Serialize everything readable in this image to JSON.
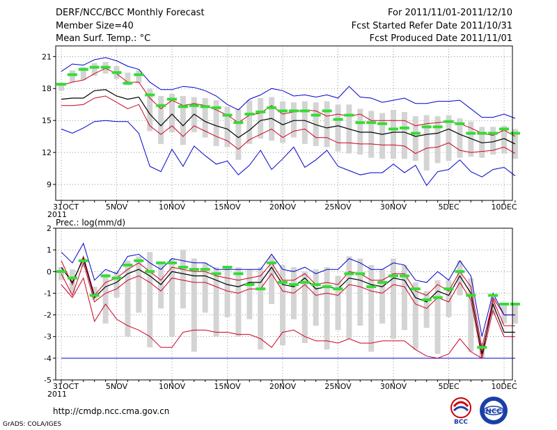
{
  "header": {
    "title": "DERF/NCC/BCC Monthly Forecast",
    "member_size": "Member Size=40",
    "variable": "Mean Surf. Temp.: °C",
    "period": "For 2011/11/01-2011/12/10",
    "started": "Fcst Started Refer Date 2011/10/31",
    "produced": "Fcst Produced Date 2011/11/01"
  },
  "footer": {
    "url": "http://cmdp.ncc.cma.gov.cn",
    "grads": "GrADS: COLA/IGES",
    "logo_bcc": "BCC",
    "logo_ncc": "NCC"
  },
  "colors": {
    "max_line": "#0000cc",
    "upper_line": "#cc0022",
    "mean_line": "#000000",
    "median_mark": "#33dd33",
    "box": "#d4d4d4"
  },
  "chart_data": [
    {
      "type": "line",
      "name": "temperature",
      "title": "Mean Surf. Temp.: °C",
      "ylabel": "°C",
      "ylim": [
        7.5,
        22
      ],
      "yticks": [
        9,
        12,
        15,
        18,
        21
      ],
      "x_tick_labels": [
        "31OCT",
        "5NOV",
        "10NOV",
        "15NOV",
        "20NOV",
        "25NOV",
        "30NOV",
        "5DEC",
        "10DEC"
      ],
      "x_year_label": "2011",
      "series": [
        {
          "name": "max",
          "values": [
            19.6,
            20.3,
            20.2,
            20.7,
            20.9,
            20.6,
            20.1,
            19.8,
            18.6,
            17.9,
            17.9,
            18.2,
            18.1,
            17.8,
            17.3,
            16.5,
            16.0,
            17.0,
            17.4,
            18.0,
            17.8,
            17.3,
            17.4,
            17.2,
            17.4,
            17.1,
            18.2,
            17.2,
            17.1,
            16.7,
            16.9,
            17.1,
            16.6,
            16.6,
            16.8,
            16.8,
            16.9,
            16.1,
            15.3,
            15.3,
            15.6,
            15.2
          ]
        },
        {
          "name": "upper",
          "values": [
            18.3,
            18.6,
            18.8,
            19.4,
            19.9,
            19.4,
            18.6,
            18.6,
            17.1,
            16.1,
            16.9,
            16.4,
            16.6,
            16.4,
            16.0,
            15.5,
            14.8,
            15.5,
            15.7,
            16.4,
            15.6,
            15.8,
            16.0,
            15.9,
            15.4,
            15.6,
            15.4,
            15.6,
            15.0,
            15.0,
            15.0,
            15.0,
            14.5,
            14.7,
            14.8,
            14.9,
            14.7,
            14.3,
            13.8,
            13.6,
            14.1,
            13.5
          ]
        },
        {
          "name": "mean",
          "values": [
            17.0,
            17.1,
            17.1,
            17.8,
            17.9,
            17.3,
            17.0,
            17.2,
            15.6,
            14.5,
            15.6,
            14.5,
            15.6,
            14.9,
            14.5,
            14.2,
            13.4,
            14.1,
            15.0,
            15.2,
            14.6,
            15.0,
            15.0,
            14.6,
            14.3,
            14.5,
            14.2,
            13.9,
            13.9,
            13.7,
            13.9,
            13.9,
            13.5,
            13.7,
            13.8,
            14.2,
            13.7,
            13.3,
            12.9,
            13.0,
            13.3,
            12.8
          ]
        },
        {
          "name": "lower",
          "values": [
            16.4,
            16.4,
            16.5,
            17.1,
            17.3,
            16.7,
            16.1,
            16.5,
            14.5,
            13.7,
            14.5,
            13.5,
            14.5,
            14.0,
            13.5,
            13.1,
            12.3,
            13.2,
            13.7,
            14.2,
            13.4,
            14.0,
            14.2,
            13.4,
            13.4,
            12.9,
            12.9,
            12.8,
            12.8,
            12.7,
            12.7,
            12.6,
            11.9,
            12.4,
            12.5,
            12.9,
            12.2,
            12.0,
            12.1,
            12.2,
            12.5,
            11.9
          ]
        },
        {
          "name": "min",
          "values": [
            14.2,
            13.8,
            14.3,
            14.9,
            15.0,
            14.9,
            14.9,
            13.8,
            10.7,
            10.2,
            12.3,
            10.7,
            12.6,
            11.7,
            10.9,
            11.2,
            9.9,
            10.8,
            12.2,
            10.4,
            11.4,
            12.5,
            10.6,
            11.3,
            12.2,
            10.7,
            10.3,
            9.9,
            10.1,
            10.1,
            10.9,
            10.1,
            10.8,
            8.9,
            10.2,
            10.4,
            11.3,
            10.2,
            9.7,
            10.4,
            10.6,
            9.8
          ]
        },
        {
          "name": "median",
          "values": [
            18.4,
            19.3,
            19.8,
            20.0,
            20.0,
            19.5,
            18.5,
            19.3,
            17.4,
            16.4,
            17.0,
            16.3,
            16.4,
            16.3,
            16.2,
            15.5,
            14.8,
            15.6,
            15.8,
            16.2,
            15.9,
            15.9,
            15.9,
            15.5,
            15.9,
            15.1,
            15.5,
            14.8,
            14.8,
            14.7,
            14.2,
            14.3,
            13.8,
            14.4,
            14.4,
            14.9,
            14.7,
            13.8,
            13.8,
            13.8,
            14.2,
            13.8
          ]
        },
        {
          "name": "box_top",
          "values": [
            18.4,
            19.7,
            20.0,
            20.4,
            20.5,
            20.1,
            19.5,
            19.7,
            18.0,
            17.3,
            17.5,
            17.3,
            17.2,
            17.1,
            16.9,
            16.3,
            16.1,
            16.9,
            17.1,
            17.2,
            16.8,
            16.7,
            16.8,
            16.7,
            16.8,
            16.5,
            16.5,
            16.1,
            15.9,
            15.7,
            16.0,
            15.8,
            15.4,
            15.5,
            15.4,
            15.5,
            15.2,
            14.9,
            14.4,
            14.4,
            14.5,
            14.2
          ]
        },
        {
          "name": "box_bottom",
          "values": [
            17.8,
            18.6,
            18.8,
            19.2,
            19.4,
            18.9,
            18.3,
            18.5,
            14.0,
            12.8,
            13.9,
            12.7,
            13.9,
            13.4,
            12.6,
            12.5,
            11.3,
            12.8,
            13.3,
            13.1,
            12.9,
            13.4,
            12.8,
            12.6,
            12.5,
            12.1,
            11.9,
            11.8,
            11.5,
            11.4,
            11.4,
            11.4,
            11.2,
            10.3,
            11.0,
            11.2,
            11.5,
            11.6,
            11.5,
            11.8,
            11.9,
            11.4
          ]
        }
      ]
    },
    {
      "type": "line",
      "name": "precipitation",
      "title": "Prec.: log(mm/d)",
      "ylabel": "log(mm/d)",
      "ylim": [
        -5,
        2
      ],
      "yticks": [
        -5,
        -4,
        -3,
        -2,
        -1,
        0,
        1,
        2
      ],
      "x_tick_labels": [
        "31OCT",
        "5NOV",
        "10NOV",
        "15NOV",
        "20NOV",
        "25NOV",
        "30NOV",
        "5DEC",
        "10DEC"
      ],
      "x_year_label": "2011",
      "series": [
        {
          "name": "max",
          "values": [
            0.9,
            0.4,
            1.3,
            -0.4,
            0.1,
            -0.1,
            0.7,
            0.8,
            0.4,
            0.1,
            0.6,
            0.5,
            0.4,
            0.4,
            0.1,
            0.1,
            0.1,
            0.1,
            0.1,
            0.8,
            0.1,
            0.0,
            0.2,
            -0.1,
            0.1,
            0.1,
            0.6,
            0.4,
            0.1,
            0.1,
            0.4,
            0.3,
            -0.4,
            -0.5,
            0.0,
            -0.4,
            0.5,
            -0.2,
            -3.0,
            -1.0,
            -2.0,
            -2.0
          ]
        },
        {
          "name": "upper",
          "values": [
            0.5,
            -0.6,
            0.7,
            -1.1,
            -0.5,
            -0.3,
            0.1,
            0.4,
            0.0,
            -0.4,
            0.2,
            0.1,
            0.0,
            0.0,
            -0.2,
            -0.3,
            -0.4,
            -0.3,
            -0.2,
            0.4,
            -0.4,
            -0.4,
            -0.1,
            -0.6,
            -0.5,
            -0.6,
            0.0,
            -0.1,
            -0.4,
            -0.4,
            -0.1,
            -0.1,
            -0.9,
            -1.1,
            -0.6,
            -0.9,
            0.0,
            -0.7,
            -3.5,
            -1.3,
            -2.5,
            -2.5
          ]
        },
        {
          "name": "mean",
          "values": [
            0.2,
            -0.5,
            0.6,
            -1.2,
            -0.7,
            -0.5,
            -0.1,
            0.1,
            -0.2,
            -0.6,
            0.0,
            -0.1,
            -0.2,
            -0.2,
            -0.4,
            -0.6,
            -0.7,
            -0.5,
            -0.5,
            0.2,
            -0.6,
            -0.7,
            -0.3,
            -0.8,
            -0.7,
            -0.8,
            -0.3,
            -0.4,
            -0.6,
            -0.7,
            -0.3,
            -0.4,
            -1.2,
            -1.4,
            -0.9,
            -1.1,
            -0.2,
            -1.0,
            -3.8,
            -1.5,
            -2.8,
            -2.8
          ]
        },
        {
          "name": "lower",
          "values": [
            -0.1,
            -1.1,
            0.4,
            -1.4,
            -1.0,
            -0.8,
            -0.4,
            -0.2,
            -0.5,
            -0.9,
            -0.3,
            -0.4,
            -0.5,
            -0.5,
            -0.7,
            -0.9,
            -1.0,
            -0.8,
            -0.8,
            -0.1,
            -0.9,
            -1.0,
            -0.6,
            -1.1,
            -1.0,
            -1.1,
            -0.6,
            -0.7,
            -0.9,
            -1.0,
            -0.6,
            -0.7,
            -1.5,
            -1.7,
            -1.2,
            -1.4,
            -0.5,
            -1.3,
            -4.0,
            -1.8,
            -3.0,
            -3.0
          ]
        },
        {
          "name": "min",
          "values": [
            -0.6,
            -1.2,
            -0.3,
            -2.3,
            -1.5,
            -2.2,
            -2.5,
            -2.7,
            -3.0,
            -3.5,
            -3.5,
            -2.8,
            -2.7,
            -2.7,
            -2.8,
            -2.8,
            -2.9,
            -2.9,
            -3.1,
            -3.5,
            -2.8,
            -2.7,
            -3.0,
            -3.2,
            -3.2,
            -3.3,
            -3.1,
            -3.3,
            -3.3,
            -3.2,
            -3.2,
            -3.2,
            -3.6,
            -3.9,
            -4.0,
            -3.8,
            -3.1,
            -3.7,
            -4.0,
            -1.2,
            -2.0,
            -2.0
          ]
        },
        {
          "name": "floor",
          "values": [
            -4.0,
            -4.0,
            -4.0,
            -4.0,
            -4.0,
            -4.0,
            -4.0,
            -4.0,
            -4.0,
            -4.0,
            -4.0,
            -4.0,
            -4.0,
            -4.0,
            -4.0,
            -4.0,
            -4.0,
            -4.0,
            -4.0,
            -4.0,
            -4.0,
            -4.0,
            -4.0,
            -4.0,
            -4.0,
            -4.0,
            -4.0,
            -4.0,
            -4.0,
            -4.0,
            -4.0,
            -4.0,
            -4.0,
            -4.0,
            -4.0,
            -4.0,
            -4.0,
            -4.0,
            -4.0,
            -4.0,
            -4.0,
            -4.0
          ]
        },
        {
          "name": "median",
          "values": [
            0.0,
            -0.3,
            0.5,
            -1.1,
            -0.2,
            -0.3,
            0.3,
            0.5,
            0.0,
            0.4,
            0.4,
            0.2,
            0.1,
            0.1,
            -0.1,
            0.2,
            -0.1,
            -0.6,
            -0.8,
            0.4,
            -0.5,
            -0.6,
            -0.5,
            -0.6,
            -0.7,
            -0.8,
            -0.1,
            -0.1,
            -0.7,
            -0.5,
            -0.2,
            -0.2,
            -0.8,
            -1.3,
            -1.2,
            -0.8,
            0.0,
            -1.1,
            -3.5,
            -1.1,
            -1.5,
            -1.5
          ]
        },
        {
          "name": "box_top",
          "values": [
            0.2,
            0.1,
            0.6,
            -0.7,
            -0.1,
            0.0,
            0.5,
            0.7,
            0.9,
            0.4,
            0.6,
            1.0,
            0.6,
            0.4,
            0.2,
            0.2,
            0.2,
            0.1,
            0.2,
            0.7,
            0.3,
            0.2,
            0.0,
            0.1,
            0.2,
            -0.2,
            0.7,
            0.6,
            0.3,
            0.1,
            0.6,
            0.3,
            -0.5,
            -0.9,
            -0.4,
            -0.4,
            0.5,
            -0.3,
            -3.3,
            -1.2,
            -1.5,
            -1.5
          ]
        },
        {
          "name": "box_bottom",
          "values": [
            -0.4,
            -1.0,
            0.2,
            -1.3,
            -2.4,
            -1.2,
            -3.0,
            -1.9,
            -3.5,
            -1.7,
            -3.0,
            -1.7,
            -3.7,
            -1.9,
            -3.0,
            -2.1,
            -3.0,
            -2.2,
            -3.6,
            -1.5,
            -3.4,
            -2.2,
            -3.3,
            -2.5,
            -3.6,
            -2.7,
            -3.1,
            -2.5,
            -3.7,
            -2.4,
            -3.1,
            -2.7,
            -3.6,
            -2.6,
            -3.8,
            -2.1,
            -1.1,
            -3.7,
            -4.0,
            -2.0,
            -2.4,
            -2.4
          ]
        }
      ]
    }
  ]
}
